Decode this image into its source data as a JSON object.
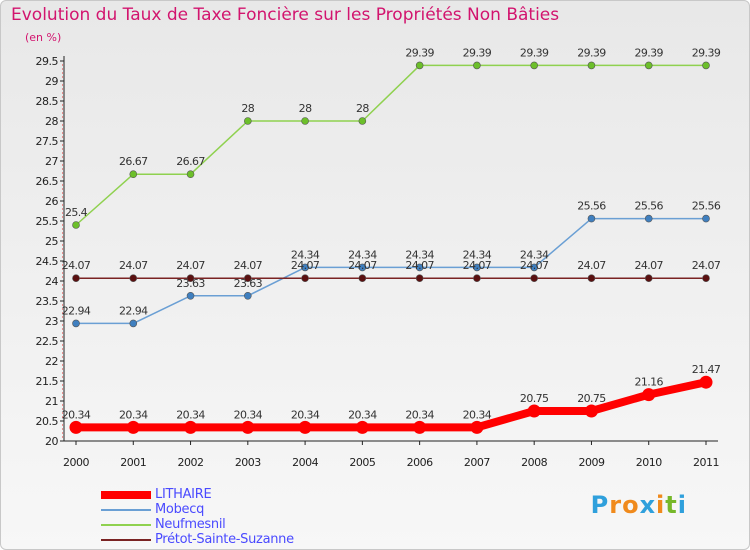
{
  "header": {
    "title": "Evolution du Taux de Taxe Foncière sur les Propriétés Non Bâties",
    "unit": "(en %)"
  },
  "logo": {
    "text": "Proxiti",
    "letters": [
      "P",
      "r",
      "o",
      "x",
      "i",
      "t",
      "i"
    ],
    "colors": [
      "#2fa0dc",
      "#f08a1c",
      "#f08a1c",
      "#2fa0dc",
      "#f08a1c",
      "#76b82a",
      "#2fa0dc"
    ]
  },
  "chart_data": {
    "type": "line",
    "title": "Evolution du Taux de Taxe Foncière sur les Propriétés Non Bâties",
    "ylabel": "(en %)",
    "xlabel": "",
    "categories": [
      "2000",
      "2001",
      "2002",
      "2003",
      "2004",
      "2005",
      "2006",
      "2007",
      "2008",
      "2009",
      "2010",
      "2011"
    ],
    "ylim": [
      20,
      29.5
    ],
    "yticks": [
      "20",
      "20.5",
      "21",
      "21.5",
      "22",
      "22.5",
      "23",
      "23.5",
      "24",
      "24.5",
      "25",
      "25.5",
      "26",
      "26.5",
      "27",
      "27.5",
      "28",
      "28.5",
      "29",
      "29.5"
    ],
    "grid": false,
    "legend_position": "bottom-left",
    "series": [
      {
        "name": "Neufmesnil",
        "color": "#8fd14f",
        "marker": "#6cbf2a",
        "values": [
          25.4,
          26.67,
          26.67,
          28,
          28,
          28,
          29.39,
          29.39,
          29.39,
          29.39,
          29.39,
          29.39
        ],
        "labels": [
          "25.4",
          "26.67",
          "26.67",
          "28",
          "28",
          "28",
          "29.39",
          "29.39",
          "29.39",
          "29.39",
          "29.39",
          "29.39"
        ]
      },
      {
        "name": "Mobecq",
        "color": "#6a9fd4",
        "marker": "#3f7fbf",
        "values": [
          22.94,
          22.94,
          23.63,
          23.63,
          24.34,
          24.34,
          24.34,
          24.34,
          24.34,
          25.56,
          25.56,
          25.56
        ],
        "labels": [
          "22.94",
          "22.94",
          "23.63",
          "23.63",
          "24.34",
          "24.34",
          "24.34",
          "24.34",
          "24.34",
          "25.56",
          "25.56",
          "25.56"
        ]
      },
      {
        "name": "Prétot-Sainte-Suzanne",
        "color": "#7a2323",
        "marker": "#5a1010",
        "values": [
          24.07,
          24.07,
          24.07,
          24.07,
          24.07,
          24.07,
          24.07,
          24.07,
          24.07,
          24.07,
          24.07,
          24.07
        ],
        "labels": [
          "24.07",
          "24.07",
          "24.07",
          "24.07",
          "24.07",
          "24.07",
          "24.07",
          "24.07",
          "24.07",
          "24.07",
          "24.07",
          "24.07"
        ]
      },
      {
        "name": "LITHAIRE",
        "color": "#ff0000",
        "marker": "#ff0000",
        "values": [
          20.34,
          20.34,
          20.34,
          20.34,
          20.34,
          20.34,
          20.34,
          20.34,
          20.75,
          20.75,
          21.16,
          21.47
        ],
        "labels": [
          "20.34",
          "20.34",
          "20.34",
          "20.34",
          "20.34",
          "20.34",
          "20.34",
          "20.34",
          "20.75",
          "20.75",
          "21.16",
          "21.47"
        ]
      }
    ],
    "legend": [
      "LITHAIRE",
      "Mobecq",
      "Neufmesnil",
      "Prétot-Sainte-Suzanne"
    ]
  }
}
